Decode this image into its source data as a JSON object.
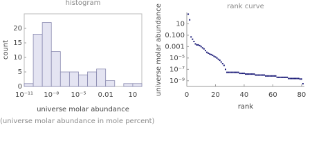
{
  "chart_data": [
    {
      "type": "histogram",
      "title": "histogram",
      "x_label": "universe molar abundance",
      "y_label": "count",
      "caption": "(universe molar abundance in mole percent)",
      "bins": [
        1e-11,
        1e-10,
        1e-09,
        1e-08,
        1e-07,
        1e-06,
        1e-05,
        0.0001,
        0.001,
        0.01,
        0.1,
        1,
        10,
        100
      ],
      "values": [
        1,
        18,
        22,
        12,
        5,
        5,
        4,
        5,
        6,
        2,
        0,
        1,
        1
      ],
      "color": "#e4e4f2",
      "edge_color": "#8a8ab0",
      "xscale": "log",
      "xlim": [
        1e-11,
        100
      ],
      "ylim": [
        0,
        25
      ],
      "xticks": [
        {
          "value": 1e-11,
          "label": "10⁻¹¹"
        },
        {
          "value": 1e-08,
          "label": "10⁻⁸"
        },
        {
          "value": 1e-05,
          "label": "10⁻⁵"
        },
        0.01,
        10
      ],
      "yticks": [
        0,
        5,
        10,
        15,
        20
      ]
    },
    {
      "type": "scatter",
      "title": "rank curve",
      "x_label": "rank",
      "y_label": "universe molar abundance",
      "x": [
        1,
        2,
        3,
        4,
        5,
        6,
        7,
        8,
        9,
        10,
        11,
        12,
        13,
        14,
        15,
        16,
        17,
        18,
        19,
        20,
        21,
        22,
        23,
        24,
        25,
        26,
        27,
        28,
        29,
        30,
        31,
        32,
        33,
        34,
        35,
        36,
        37,
        38,
        39,
        40,
        41,
        42,
        43,
        44,
        45,
        46,
        47,
        48,
        49,
        50,
        51,
        52,
        53,
        54,
        55,
        56,
        57,
        58,
        59,
        60,
        61,
        62,
        63,
        64,
        65,
        66,
        67,
        68,
        69,
        70,
        71,
        72,
        73,
        74,
        75,
        76,
        77,
        78,
        79,
        80,
        81
      ],
      "values": [
        500,
        50,
        0.05,
        0.02,
        0.008,
        0.003,
        0.002,
        0.002,
        0.0015,
        0.001,
        0.0006,
        0.0004,
        0.0002,
        0.0001,
        7e-05,
        5e-05,
        4e-05,
        3e-05,
        2e-05,
        1.5e-05,
        1e-05,
        6e-06,
        4e-06,
        2e-06,
        1e-06,
        5e-07,
        1e-07,
        3e-08,
        3e-08,
        3e-08,
        3e-08,
        3e-08,
        3e-08,
        3e-08,
        3e-08,
        3e-08,
        2e-08,
        2e-08,
        2e-08,
        2e-08,
        1.5e-08,
        1.5e-08,
        1.5e-08,
        1.5e-08,
        1.5e-08,
        1.5e-08,
        1.5e-08,
        1e-08,
        1e-08,
        1e-08,
        1e-08,
        1e-08,
        1e-08,
        1e-08,
        7e-09,
        7e-09,
        7e-09,
        7e-09,
        7e-09,
        7e-09,
        7e-09,
        7e-09,
        4e-09,
        4e-09,
        4e-09,
        4e-09,
        4e-09,
        4e-09,
        4e-09,
        4e-09,
        2.5e-09,
        2.5e-09,
        2.5e-09,
        2.5e-09,
        2.5e-09,
        2.5e-09,
        2.5e-09,
        2.5e-09,
        2e-09,
        2e-09,
        3e-10
      ],
      "color": "#1f1f7a",
      "yscale": "log",
      "xlim": [
        0,
        82
      ],
      "ylim": [
        1e-10,
        1000
      ],
      "xticks": [
        0,
        20,
        40,
        60,
        80
      ],
      "yticks": [
        10,
        {
          "value": 0.1,
          "label": "0.100"
        },
        0.001,
        {
          "value": 1e-05,
          "label": "10⁻⁵"
        },
        {
          "value": 1e-07,
          "label": "10⁻⁷"
        },
        {
          "value": 1e-09,
          "label": "10⁻⁹"
        }
      ]
    }
  ]
}
